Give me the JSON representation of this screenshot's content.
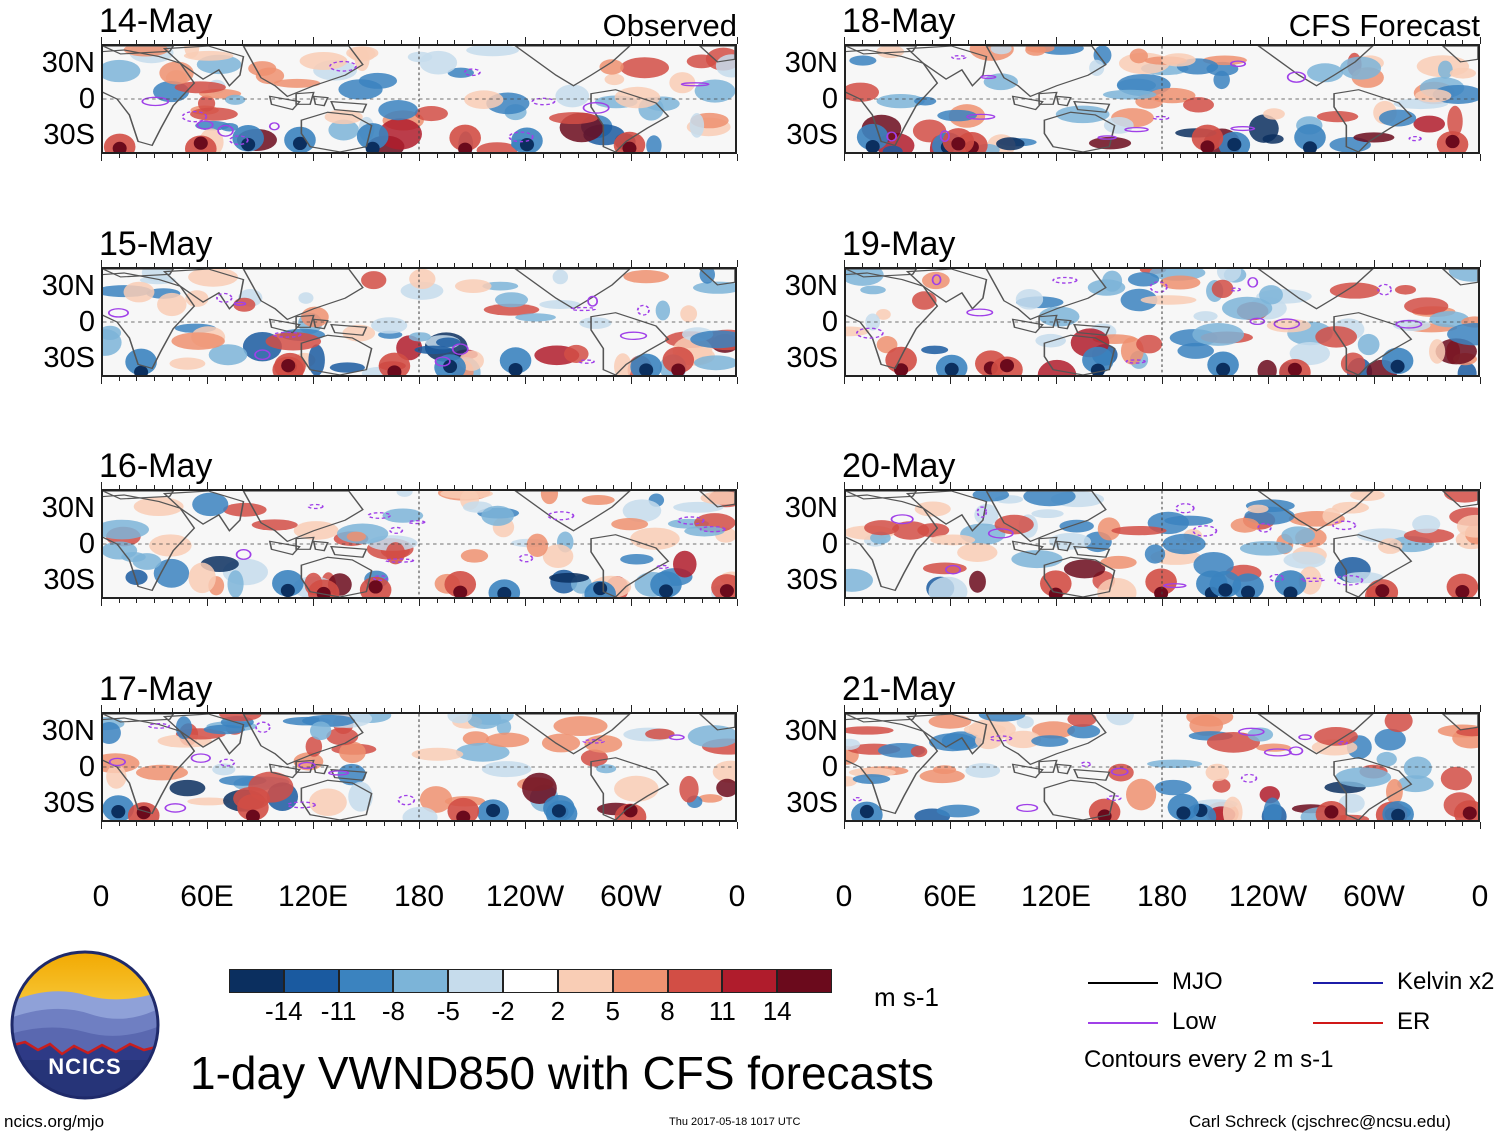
{
  "chart_data": {
    "type": "heatmap",
    "title": "1-day VWND850 with CFS forecasts",
    "variable": "850 hPa meridional wind (VWND850)",
    "units": "m s-1",
    "colorbar": {
      "levels": [
        -14,
        -11,
        -8,
        -5,
        -2,
        2,
        5,
        8,
        11,
        14
      ],
      "level_labels": [
        "-14",
        "-11",
        "-8",
        "-5",
        "-2",
        "2",
        "5",
        "8",
        "11",
        "14"
      ],
      "colors": [
        "#0b2f5f",
        "#1a5aa0",
        "#3b83bf",
        "#7cb4d8",
        "#c6dcec",
        "#ffffff",
        "#f9cdb5",
        "#ee9170",
        "#d24e45",
        "#b01c2c",
        "#6b0a1c"
      ]
    },
    "columns": [
      {
        "source": "Observed",
        "panels": [
          "14-May",
          "15-May",
          "16-May",
          "17-May"
        ]
      },
      {
        "source": "CFS Forecast",
        "panels": [
          "18-May",
          "19-May",
          "20-May",
          "21-May"
        ]
      }
    ],
    "x_axis": {
      "tick_labels": [
        "0",
        "60E",
        "120E",
        "180",
        "120W",
        "60W",
        "0"
      ],
      "range_deg_east": [
        0,
        360
      ]
    },
    "y_axis": {
      "tick_labels": [
        "30N",
        "0",
        "30S"
      ],
      "range_deg": [
        -40,
        40
      ]
    },
    "legend": [
      {
        "label": "MJO",
        "color": "#000000"
      },
      {
        "label": "Kelvin x2",
        "color": "#1c1ca8"
      },
      {
        "label": "Low",
        "color": "#a040e8"
      },
      {
        "label": "ER",
        "color": "#d01818"
      }
    ],
    "contour_note": "Contours every 2 m s-1"
  },
  "footer": {
    "logo_text": "NCICS",
    "url": "ncics.org/mjo",
    "timestamp": "Thu 2017-05-18 1017 UTC",
    "credit": "Carl Schreck (cjschrec@ncsu.edu)"
  }
}
